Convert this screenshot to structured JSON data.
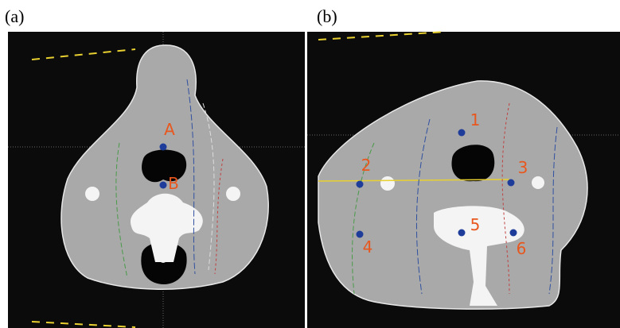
{
  "panels": [
    {
      "label": "(a)",
      "markers": [
        "A",
        "B"
      ]
    },
    {
      "label": "(b)",
      "markers": [
        "1",
        "2",
        "3",
        "4",
        "5",
        "6"
      ]
    }
  ]
}
